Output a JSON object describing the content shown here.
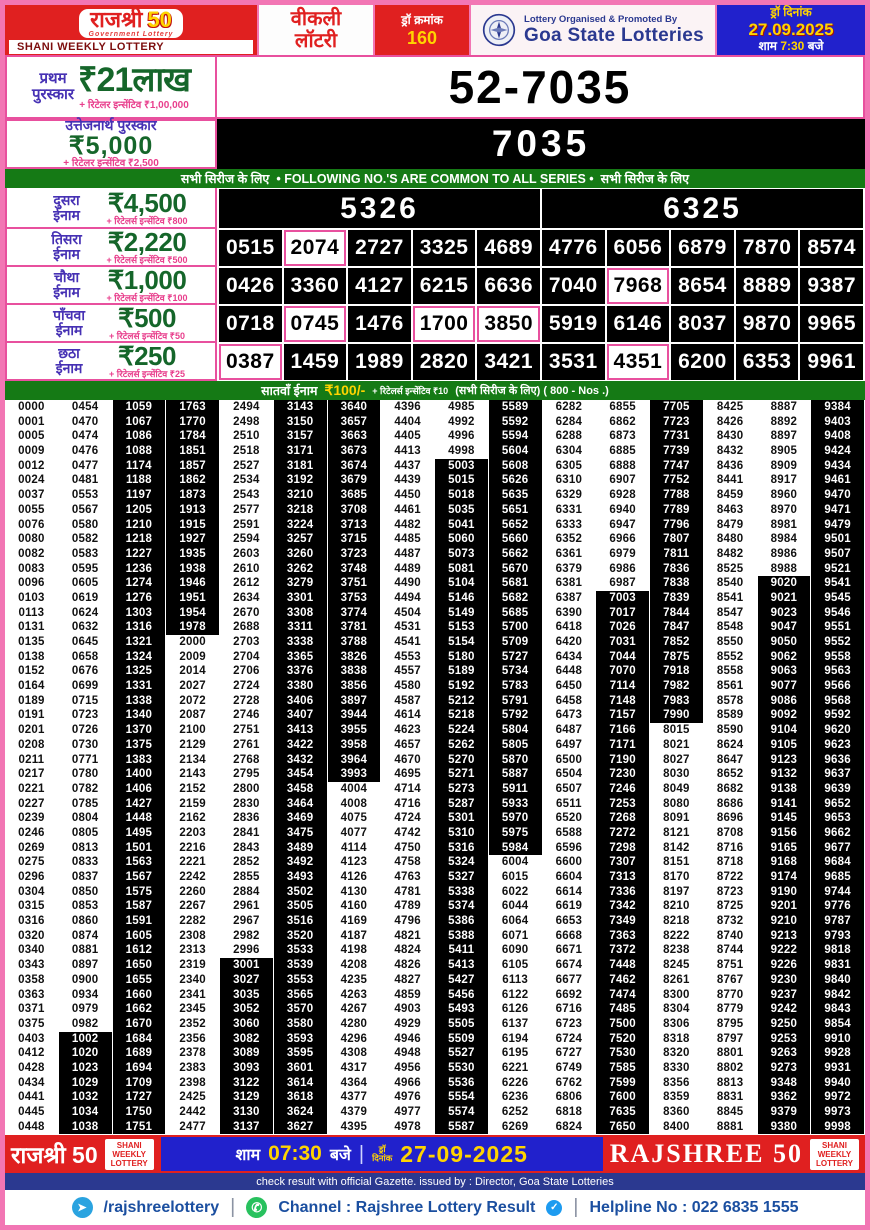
{
  "colors": {
    "red": "#e02020",
    "pink_border": "#f276b4",
    "green_bar": "#157a15",
    "amount_green": "#15662a",
    "label_purple": "#4631b4",
    "incentive_pink": "#e83e8c",
    "blue_box": "#2121cc",
    "navy": "#2b3990",
    "yellow": "#ffd400",
    "telegram_blue": "#2aa3e0",
    "whatsapp_green": "#28c15e"
  },
  "header": {
    "brand_title": "राजश्री",
    "brand_number": "50",
    "brand_tagline": "Government Lottery",
    "brand_band": "SHANI WEEKLY LOTTERY",
    "weekly_line1": "वीकली",
    "weekly_line2": "लॉटरी",
    "draw_no_label": "ड्रॉ क्रमांक",
    "draw_no": "160",
    "org_line1": "Lottery Organised & Promoted By",
    "org_line2": "Goa State Lotteries",
    "date_label": "ड्रॉ दिनांक",
    "date": "27.09.2025",
    "time_prefix": "शाम",
    "time": "7:30",
    "time_suffix": "बजे"
  },
  "first_prize": {
    "label_l1": "प्रथम",
    "label_l2": "पुरस्कार",
    "amount": "₹21लाख",
    "incentive": "+ रिटेलर इन्सेंटिव ₹1,00,000",
    "number": "52-7035"
  },
  "consolation": {
    "label": "उत्तेजनार्थ पुरस्कार",
    "amount": "₹5,000",
    "incentive": "+ रिटेलर इन्सेंटिव ₹2,500",
    "number": "7035"
  },
  "common_banner": {
    "left": "सभी सिरीज के लिए",
    "center": "• FOLLOWING NO.'S ARE COMMON TO ALL SERIES •",
    "right": "सभी सिरीज के लिए"
  },
  "tiers": [
    {
      "label_l1": "दुसरा",
      "label_l2": "ईनाम",
      "amount": "₹4,500",
      "incentive": "+ रिटेलर्स इन्सेंटिव ₹800",
      "numbers": [
        "5326",
        "6325"
      ],
      "highlights": []
    },
    {
      "label_l1": "तिसरा",
      "label_l2": "ईनाम",
      "amount": "₹2,220",
      "incentive": "+ रिटेलर्स इन्सेंटिव ₹500",
      "numbers": [
        "0515",
        "2074",
        "2727",
        "3325",
        "4689",
        "4776",
        "6056",
        "6879",
        "7870",
        "8574"
      ],
      "highlights": [
        "2074"
      ]
    },
    {
      "label_l1": "चौथा",
      "label_l2": "ईनाम",
      "amount": "₹1,000",
      "incentive": "+ रिटेलर्स इन्सेंटिव ₹100",
      "numbers": [
        "0426",
        "3360",
        "4127",
        "6215",
        "6636",
        "7040",
        "7968",
        "8654",
        "8889",
        "9387"
      ],
      "highlights": [
        "7968"
      ]
    },
    {
      "label_l1": "पाँचवा",
      "label_l2": "ईनाम",
      "amount": "₹500",
      "incentive": "+ रिटेलर्स इन्सेंटिव ₹50",
      "numbers": [
        "0718",
        "0745",
        "1476",
        "1700",
        "3850",
        "5919",
        "6146",
        "8037",
        "9870",
        "9965"
      ],
      "highlights": [
        "0745",
        "1700",
        "3850"
      ]
    },
    {
      "label_l1": "छठा",
      "label_l2": "ईनाम",
      "amount": "₹250",
      "incentive": "+ रिटेलर्स इन्सेंटिव ₹25",
      "numbers": [
        "0387",
        "1459",
        "1989",
        "2820",
        "3421",
        "3531",
        "4351",
        "6200",
        "6353",
        "9961"
      ],
      "highlights": [
        "0387",
        "4351"
      ]
    }
  ],
  "seventh": {
    "label": "सातवाँ ईनाम",
    "amount": "₹100/-",
    "incentive": "+ रिटेलर्स इन्सेंटिव ₹10",
    "note": "(सभी सिरीज के लिए) ( 800 - Nos .)",
    "rows": [
      [
        "0000",
        "0454",
        "1059",
        "1763",
        "2494",
        "3143",
        "3640",
        "4396",
        "4985",
        "5589",
        "6282",
        "6855",
        "7705",
        "8425",
        "8887",
        "9384"
      ],
      [
        "0001",
        "0470",
        "1067",
        "1770",
        "2498",
        "3150",
        "3657",
        "4404",
        "4992",
        "5592",
        "6284",
        "6862",
        "7723",
        "8426",
        "8892",
        "9403"
      ],
      [
        "0005",
        "0474",
        "1086",
        "1784",
        "2510",
        "3157",
        "3663",
        "4405",
        "4996",
        "5594",
        "6288",
        "6873",
        "7731",
        "8430",
        "8897",
        "9408"
      ],
      [
        "0009",
        "0476",
        "1088",
        "1851",
        "2518",
        "3171",
        "3673",
        "4413",
        "4998",
        "5604",
        "6304",
        "6885",
        "7739",
        "8432",
        "8905",
        "9424"
      ],
      [
        "0012",
        "0477",
        "1174",
        "1857",
        "2527",
        "3181",
        "3674",
        "4437",
        "5003",
        "5608",
        "6305",
        "6888",
        "7747",
        "8436",
        "8909",
        "9434"
      ],
      [
        "0024",
        "0481",
        "1188",
        "1862",
        "2534",
        "3192",
        "3679",
        "4439",
        "5015",
        "5626",
        "6310",
        "6907",
        "7752",
        "8441",
        "8917",
        "9461"
      ],
      [
        "0037",
        "0553",
        "1197",
        "1873",
        "2543",
        "3210",
        "3685",
        "4450",
        "5018",
        "5635",
        "6329",
        "6928",
        "7788",
        "8459",
        "8960",
        "9470"
      ],
      [
        "0055",
        "0567",
        "1205",
        "1913",
        "2577",
        "3218",
        "3708",
        "4461",
        "5035",
        "5651",
        "6331",
        "6940",
        "7789",
        "8463",
        "8970",
        "9471"
      ],
      [
        "0076",
        "0580",
        "1210",
        "1915",
        "2591",
        "3224",
        "3713",
        "4482",
        "5041",
        "5652",
        "6333",
        "6947",
        "7796",
        "8479",
        "8981",
        "9479"
      ],
      [
        "0080",
        "0582",
        "1218",
        "1927",
        "2594",
        "3257",
        "3715",
        "4485",
        "5060",
        "5660",
        "6352",
        "6966",
        "7807",
        "8480",
        "8984",
        "9501"
      ],
      [
        "0082",
        "0583",
        "1227",
        "1935",
        "2603",
        "3260",
        "3723",
        "4487",
        "5073",
        "5662",
        "6361",
        "6979",
        "7811",
        "8482",
        "8986",
        "9507"
      ],
      [
        "0083",
        "0595",
        "1236",
        "1938",
        "2610",
        "3262",
        "3748",
        "4489",
        "5081",
        "5670",
        "6379",
        "6986",
        "7836",
        "8525",
        "8988",
        "9521"
      ],
      [
        "0096",
        "0605",
        "1274",
        "1946",
        "2612",
        "3279",
        "3751",
        "4490",
        "5104",
        "5681",
        "6381",
        "6987",
        "7838",
        "8540",
        "9020",
        "9541"
      ],
      [
        "0103",
        "0619",
        "1276",
        "1951",
        "2634",
        "3301",
        "3753",
        "4494",
        "5146",
        "5682",
        "6387",
        "7003",
        "7839",
        "8541",
        "9021",
        "9545"
      ],
      [
        "0113",
        "0624",
        "1303",
        "1954",
        "2670",
        "3308",
        "3774",
        "4504",
        "5149",
        "5685",
        "6390",
        "7017",
        "7844",
        "8547",
        "9023",
        "9546"
      ],
      [
        "0131",
        "0632",
        "1316",
        "1978",
        "2688",
        "3311",
        "3781",
        "4531",
        "5153",
        "5700",
        "6418",
        "7026",
        "7847",
        "8548",
        "9047",
        "9551"
      ],
      [
        "0135",
        "0645",
        "1321",
        "2000",
        "2703",
        "3338",
        "3788",
        "4541",
        "5154",
        "5709",
        "6420",
        "7031",
        "7852",
        "8550",
        "9050",
        "9552"
      ],
      [
        "0138",
        "0658",
        "1324",
        "2009",
        "2704",
        "3365",
        "3826",
        "4553",
        "5180",
        "5727",
        "6434",
        "7044",
        "7875",
        "8552",
        "9062",
        "9558"
      ],
      [
        "0152",
        "0676",
        "1325",
        "2014",
        "2706",
        "3376",
        "3838",
        "4557",
        "5189",
        "5734",
        "6448",
        "7070",
        "7918",
        "8558",
        "9063",
        "9563"
      ],
      [
        "0164",
        "0699",
        "1331",
        "2027",
        "2724",
        "3380",
        "3856",
        "4580",
        "5192",
        "5783",
        "6450",
        "7114",
        "7982",
        "8561",
        "9077",
        "9566"
      ],
      [
        "0189",
        "0715",
        "1338",
        "2072",
        "2728",
        "3406",
        "3897",
        "4587",
        "5212",
        "5791",
        "6458",
        "7148",
        "7983",
        "8578",
        "9086",
        "9568"
      ],
      [
        "0191",
        "0723",
        "1340",
        "2087",
        "2746",
        "3407",
        "3944",
        "4614",
        "5218",
        "5792",
        "6473",
        "7157",
        "7990",
        "8589",
        "9092",
        "9592"
      ],
      [
        "0201",
        "0726",
        "1370",
        "2100",
        "2751",
        "3413",
        "3955",
        "4623",
        "5224",
        "5804",
        "6487",
        "7166",
        "8015",
        "8590",
        "9104",
        "9620"
      ],
      [
        "0208",
        "0730",
        "1375",
        "2129",
        "2761",
        "3422",
        "3958",
        "4657",
        "5262",
        "5805",
        "6497",
        "7171",
        "8021",
        "8624",
        "9105",
        "9623"
      ],
      [
        "0211",
        "0771",
        "1383",
        "2134",
        "2768",
        "3432",
        "3964",
        "4670",
        "5270",
        "5870",
        "6500",
        "7190",
        "8027",
        "8647",
        "9123",
        "9636"
      ],
      [
        "0217",
        "0780",
        "1400",
        "2143",
        "2795",
        "3454",
        "3993",
        "4695",
        "5271",
        "5887",
        "6504",
        "7230",
        "8030",
        "8652",
        "9132",
        "9637"
      ],
      [
        "0221",
        "0782",
        "1406",
        "2152",
        "2800",
        "3458",
        "4004",
        "4714",
        "5273",
        "5911",
        "6507",
        "7246",
        "8049",
        "8682",
        "9138",
        "9639"
      ],
      [
        "0227",
        "0785",
        "1427",
        "2159",
        "2830",
        "3464",
        "4008",
        "4716",
        "5287",
        "5933",
        "6511",
        "7253",
        "8080",
        "8686",
        "9141",
        "9652"
      ],
      [
        "0239",
        "0804",
        "1448",
        "2162",
        "2836",
        "3469",
        "4075",
        "4724",
        "5301",
        "5970",
        "6520",
        "7268",
        "8091",
        "8696",
        "9145",
        "9653"
      ],
      [
        "0246",
        "0805",
        "1495",
        "2203",
        "2841",
        "3475",
        "4077",
        "4742",
        "5310",
        "5975",
        "6588",
        "7272",
        "8121",
        "8708",
        "9156",
        "9662"
      ],
      [
        "0269",
        "0813",
        "1501",
        "2216",
        "2843",
        "3489",
        "4114",
        "4750",
        "5316",
        "5984",
        "6596",
        "7298",
        "8142",
        "8716",
        "9165",
        "9677"
      ],
      [
        "0275",
        "0833",
        "1563",
        "2221",
        "2852",
        "3492",
        "4123",
        "4758",
        "5324",
        "6004",
        "6600",
        "7307",
        "8151",
        "8718",
        "9168",
        "9684"
      ],
      [
        "0296",
        "0837",
        "1567",
        "2242",
        "2855",
        "3493",
        "4126",
        "4763",
        "5327",
        "6015",
        "6604",
        "7313",
        "8170",
        "8722",
        "9174",
        "9685"
      ],
      [
        "0304",
        "0850",
        "1575",
        "2260",
        "2884",
        "3502",
        "4130",
        "4781",
        "5338",
        "6022",
        "6614",
        "7336",
        "8197",
        "8723",
        "9190",
        "9744"
      ],
      [
        "0315",
        "0853",
        "1587",
        "2267",
        "2961",
        "3505",
        "4160",
        "4789",
        "5374",
        "6044",
        "6619",
        "7342",
        "8210",
        "8725",
        "9201",
        "9776"
      ],
      [
        "0316",
        "0860",
        "1591",
        "2282",
        "2967",
        "3516",
        "4169",
        "4796",
        "5386",
        "6064",
        "6653",
        "7349",
        "8218",
        "8732",
        "9210",
        "9787"
      ],
      [
        "0320",
        "0874",
        "1605",
        "2308",
        "2982",
        "3520",
        "4187",
        "4821",
        "5388",
        "6071",
        "6668",
        "7363",
        "8222",
        "8740",
        "9213",
        "9793"
      ],
      [
        "0340",
        "0881",
        "1612",
        "2313",
        "2996",
        "3533",
        "4198",
        "4824",
        "5411",
        "6090",
        "6671",
        "7372",
        "8238",
        "8744",
        "9222",
        "9818"
      ],
      [
        "0343",
        "0897",
        "1650",
        "2319",
        "3001",
        "3539",
        "4208",
        "4826",
        "5413",
        "6105",
        "6674",
        "7448",
        "8245",
        "8751",
        "9226",
        "9831"
      ],
      [
        "0358",
        "0900",
        "1655",
        "2340",
        "3027",
        "3553",
        "4235",
        "4827",
        "5427",
        "6113",
        "6677",
        "7462",
        "8261",
        "8767",
        "9230",
        "9840"
      ],
      [
        "0363",
        "0934",
        "1660",
        "2341",
        "3035",
        "3565",
        "4263",
        "4859",
        "5456",
        "6122",
        "6692",
        "7474",
        "8300",
        "8770",
        "9237",
        "9842"
      ],
      [
        "0371",
        "0979",
        "1662",
        "2345",
        "3052",
        "3570",
        "4267",
        "4903",
        "5493",
        "6126",
        "6716",
        "7485",
        "8304",
        "8779",
        "9242",
        "9843"
      ],
      [
        "0375",
        "0982",
        "1670",
        "2352",
        "3060",
        "3580",
        "4280",
        "4929",
        "5505",
        "6137",
        "6723",
        "7500",
        "8306",
        "8795",
        "9250",
        "9854"
      ],
      [
        "0403",
        "1002",
        "1684",
        "2356",
        "3082",
        "3593",
        "4296",
        "4946",
        "5509",
        "6194",
        "6724",
        "7520",
        "8318",
        "8797",
        "9253",
        "9910"
      ],
      [
        "0412",
        "1020",
        "1689",
        "2378",
        "3089",
        "3595",
        "4308",
        "4948",
        "5527",
        "6195",
        "6727",
        "7530",
        "8320",
        "8801",
        "9263",
        "9928"
      ],
      [
        "0428",
        "1023",
        "1694",
        "2383",
        "3093",
        "3601",
        "4317",
        "4956",
        "5530",
        "6221",
        "6749",
        "7585",
        "8330",
        "8802",
        "9273",
        "9931"
      ],
      [
        "0434",
        "1029",
        "1709",
        "2398",
        "3122",
        "3614",
        "4364",
        "4966",
        "5536",
        "6226",
        "6762",
        "7599",
        "8356",
        "8813",
        "9348",
        "9940"
      ],
      [
        "0441",
        "1032",
        "1727",
        "2425",
        "3129",
        "3618",
        "4377",
        "4976",
        "5554",
        "6236",
        "6806",
        "7600",
        "8359",
        "8831",
        "9362",
        "9972"
      ],
      [
        "0445",
        "1034",
        "1750",
        "2442",
        "3130",
        "3624",
        "4379",
        "4977",
        "5574",
        "6252",
        "6818",
        "7635",
        "8360",
        "8845",
        "9379",
        "9973"
      ],
      [
        "0448",
        "1038",
        "1751",
        "2477",
        "3137",
        "3627",
        "4395",
        "4978",
        "5587",
        "6269",
        "6824",
        "7650",
        "8400",
        "8881",
        "9380",
        "9998"
      ]
    ]
  },
  "footer": {
    "brand": "राजश्री 50",
    "badge_l1": "SHANI",
    "badge_l2": "WEEKLY",
    "badge_l3": "LOTTERY",
    "time_prefix": "शाम",
    "time": "07:30",
    "time_suffix": "बजे",
    "date_label_l1": "ड्रॉ",
    "date_label_l2": "दिनांक",
    "date": "27-09-2025",
    "brand_en": "RAJSHREE 50",
    "badge2_l1": "SHANI",
    "badge2_l2": "WEEKLY",
    "badge2_l3": "LOTTERY",
    "gazette": "check result with official Gazette. issued by : Director, Goa State Lotteries",
    "telegram_handle": "/rajshreelottery",
    "channel": "Channel : Rajshree Lottery Result",
    "helpline": "Helpline No : 022 6835 1555"
  }
}
